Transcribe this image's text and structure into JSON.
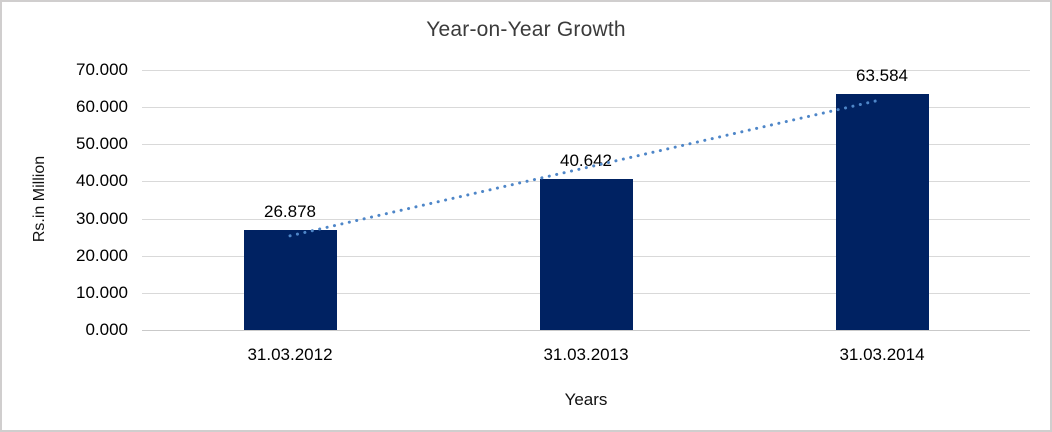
{
  "chart": {
    "title": "Year-on-Year Growth",
    "y_axis_title": "Rs.in Million",
    "x_axis_title": "Years"
  },
  "chart_data": {
    "type": "bar",
    "title": "Year-on-Year Growth",
    "categories": [
      "31.03.2012",
      "31.03.2013",
      "31.03.2014"
    ],
    "values": [
      26.878,
      40.642,
      63.584
    ],
    "value_labels": [
      "26.878",
      "40.642",
      "63.584"
    ],
    "xlabel": "Years",
    "ylabel": "Rs.in Million",
    "ylim": [
      0,
      70
    ],
    "ytick_step": 10,
    "ytick_labels": [
      "0.000",
      "10.000",
      "20.000",
      "30.000",
      "40.000",
      "50.000",
      "60.000",
      "70.000"
    ],
    "grid": true,
    "legend": false,
    "trendline": {
      "type": "linear",
      "style": "dotted"
    }
  },
  "colors": {
    "bar": "#002262",
    "trendline": "#4e86c8",
    "gridline": "#d9d9d9",
    "axis_line": "#c9c9c9",
    "frame_border": "#d0cece",
    "title_text": "#3b3b3b",
    "label_text": "#000000",
    "background": "#ffffff"
  }
}
